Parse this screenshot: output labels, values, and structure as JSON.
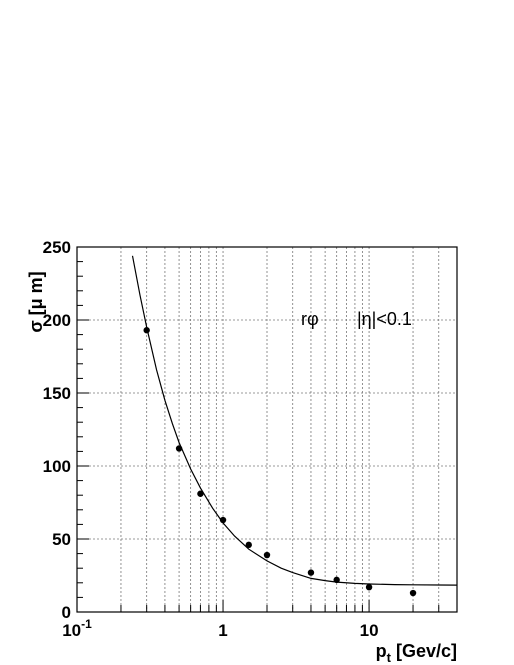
{
  "chart_data": {
    "type": "scatter",
    "xscale": "log",
    "xlim": [
      0.1,
      40
    ],
    "ylim": [
      0,
      250
    ],
    "grid": true,
    "xlabel": {
      "main": "p",
      "sub": "t",
      "unit": " [Gev/c]"
    },
    "ylabel": "σ [μ m]",
    "x_tick_labels": [
      {
        "value": 0.1,
        "base": "10",
        "exp": "-1"
      },
      {
        "value": 1,
        "base": "1",
        "exp": ""
      },
      {
        "value": 10,
        "base": "10",
        "exp": ""
      }
    ],
    "y_ticks": [
      0,
      50,
      100,
      150,
      200,
      250
    ],
    "annotations": [
      {
        "text": "rφ",
        "x": 0.3,
        "y": 0
      },
      {
        "text": "|η|<0.1",
        "x": 0.3,
        "y": 0
      }
    ],
    "series": [
      {
        "x": [
          0.3,
          0.5,
          0.7,
          1.0,
          1.5,
          2.0,
          4.0,
          6.0,
          10.0,
          20.0
        ],
        "y": [
          193,
          112,
          81,
          63,
          46,
          39,
          27,
          22,
          17,
          13
        ]
      }
    ],
    "fit": {
      "x": [
        0.24,
        0.27,
        0.3,
        0.35,
        0.4,
        0.45,
        0.5,
        0.6,
        0.7,
        0.85,
        1.0,
        1.2,
        1.5,
        2.0,
        2.5,
        3.0,
        4.0,
        5.0,
        6.0,
        8.0,
        10.0,
        15.0,
        20.0,
        30.0,
        40.0
      ],
      "y": [
        244,
        217,
        195,
        166,
        145,
        129,
        116,
        98,
        85,
        71,
        61,
        52,
        43,
        35,
        30,
        27,
        23,
        21.5,
        20.5,
        19.6,
        19.2,
        18.8,
        18.6,
        18.5,
        18.4
      ]
    }
  }
}
